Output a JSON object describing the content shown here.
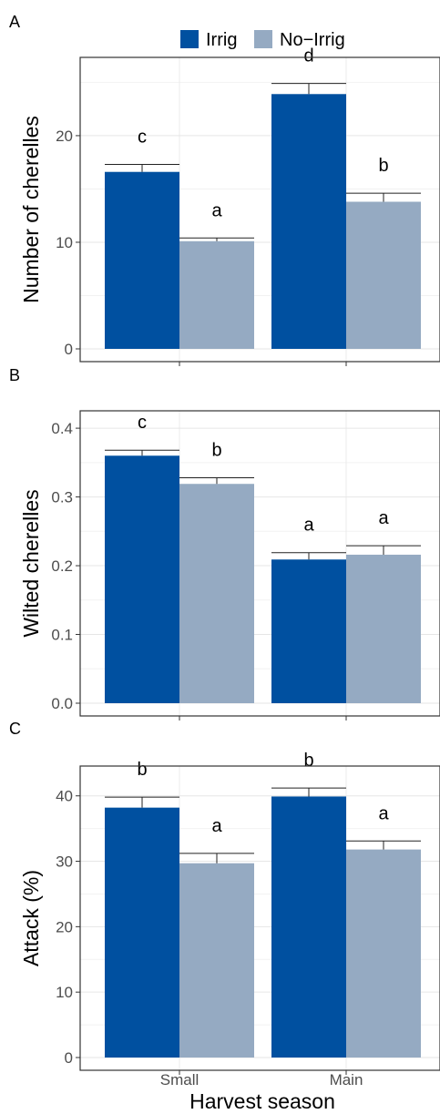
{
  "legend": {
    "position": "top",
    "items": [
      {
        "label": "Irrig",
        "color": "#0050a0"
      },
      {
        "label": "No−Irrig",
        "color": "#95aac2"
      }
    ]
  },
  "xlabel": "Harvest season",
  "categories": [
    "Small",
    "Main"
  ],
  "chart_data": [
    {
      "type": "bar",
      "panel_label": "A",
      "ylabel": "Number of cherelles",
      "ylim": [
        0,
        27
      ],
      "yticks": [
        0,
        10,
        20
      ],
      "grid": true,
      "categories": [
        "Small",
        "Main"
      ],
      "series": [
        {
          "name": "Irrig",
          "values": [
            16.6,
            23.9
          ],
          "errors": [
            0.7,
            1.0
          ],
          "letters": [
            "c",
            "d"
          ]
        },
        {
          "name": "No−Irrig",
          "values": [
            10.1,
            13.8
          ],
          "errors": [
            0.3,
            0.8
          ],
          "letters": [
            "a",
            "b"
          ]
        }
      ]
    },
    {
      "type": "bar",
      "panel_label": "B",
      "ylabel": "Wilted cherelles",
      "ylim": [
        0,
        0.42
      ],
      "yticks": [
        0.0,
        0.1,
        0.2,
        0.3,
        0.4
      ],
      "tick_decimals": 1,
      "grid": true,
      "categories": [
        "Small",
        "Main"
      ],
      "series": [
        {
          "name": "Irrig",
          "values": [
            0.36,
            0.209
          ],
          "errors": [
            0.008,
            0.01
          ],
          "letters": [
            "c",
            "a"
          ]
        },
        {
          "name": "No−Irrig",
          "values": [
            0.319,
            0.216
          ],
          "errors": [
            0.009,
            0.013
          ],
          "letters": [
            "b",
            "a"
          ]
        }
      ]
    },
    {
      "type": "bar",
      "panel_label": "C",
      "ylabel": "Attack (%)",
      "ylim": [
        0,
        44
      ],
      "yticks": [
        0,
        10,
        20,
        30,
        40
      ],
      "grid": true,
      "categories": [
        "Small",
        "Main"
      ],
      "series": [
        {
          "name": "Irrig",
          "values": [
            38.2,
            39.9
          ],
          "errors": [
            1.6,
            1.3
          ],
          "letters": [
            "b",
            "b"
          ]
        },
        {
          "name": "No−Irrig",
          "values": [
            29.7,
            31.8
          ],
          "errors": [
            1.5,
            1.3
          ],
          "letters": [
            "a",
            "a"
          ]
        }
      ]
    }
  ]
}
